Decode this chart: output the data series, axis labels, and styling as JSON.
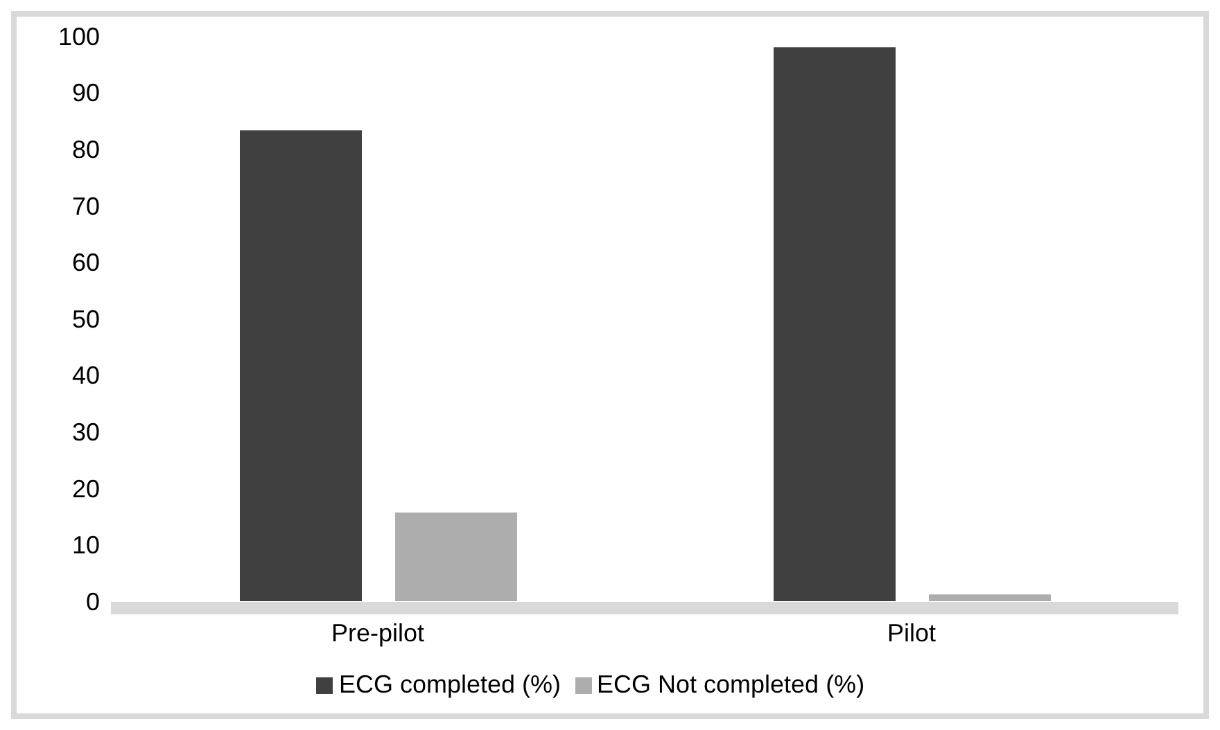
{
  "chart_data": {
    "type": "bar",
    "categories": [
      "Pre-pilot",
      "Pilot"
    ],
    "series": [
      {
        "name": "ECG completed (%)",
        "color": "#404040",
        "values": [
          83.3,
          98.0
        ]
      },
      {
        "name": "ECG Not completed (%)",
        "color": "#adadad",
        "values": [
          15.7,
          1.2
        ]
      }
    ],
    "ylim": [
      0,
      100
    ],
    "yticks": [
      0,
      10,
      20,
      30,
      40,
      50,
      60,
      70,
      80,
      90,
      100
    ],
    "grid": false,
    "legend": "bottom"
  }
}
